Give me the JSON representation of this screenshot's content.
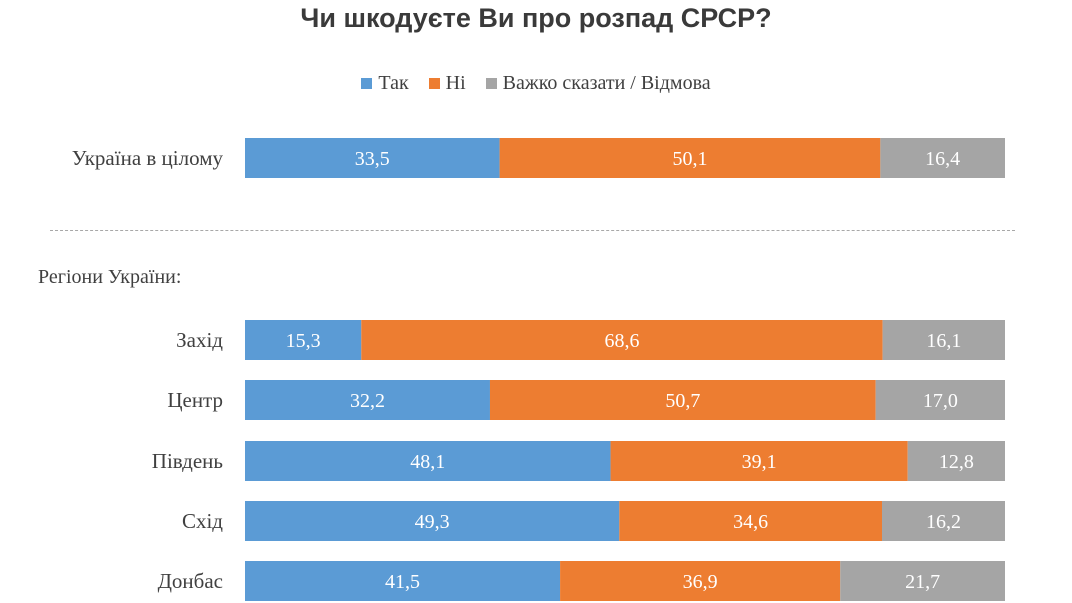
{
  "chart_data": {
    "type": "bar",
    "orientation": "horizontal",
    "stacked": true,
    "title": "Чи шкодуєте Ви про розпад СРСР?",
    "section_header": "Регіони України:",
    "categories": [
      "Україна в цілому",
      "Захід",
      "Центр",
      "Південь",
      "Схід",
      "Донбас"
    ],
    "series": [
      {
        "name": "Так",
        "color": "#5b9bd5",
        "values": [
          "33,5",
          "15,3",
          "32,2",
          "48,1",
          "49,3",
          "41,5"
        ]
      },
      {
        "name": "Ні",
        "color": "#ed7d31",
        "values": [
          "50,1",
          "68,6",
          "50,7",
          "39,1",
          "34,6",
          "36,9"
        ]
      },
      {
        "name": "Важко сказати / Відмова",
        "color": "#a5a5a5",
        "values": [
          "16,4",
          "16,1",
          "17,0",
          "12,8",
          "16,2",
          "21,7"
        ]
      }
    ],
    "legend": "top-center",
    "grid": false
  }
}
